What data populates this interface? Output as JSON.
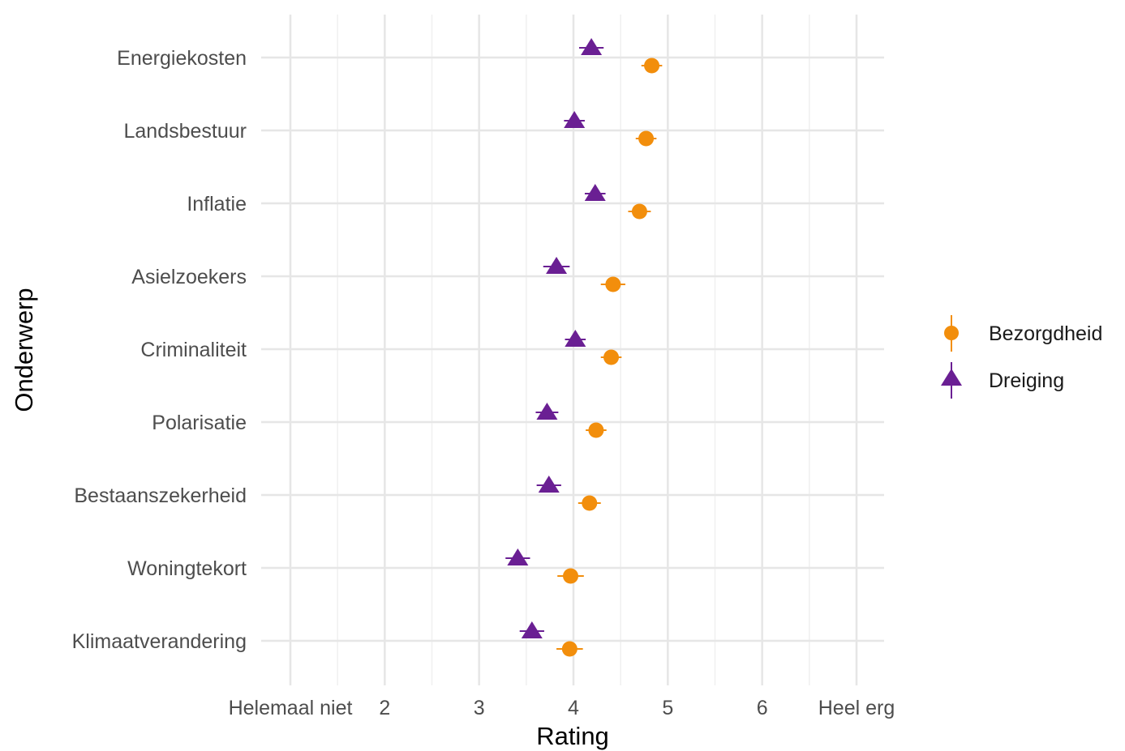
{
  "chart_data": {
    "type": "scatter",
    "title": "",
    "xlabel": "Rating",
    "ylabel": "Onderwerp",
    "xlim": [
      0.5,
      7.3
    ],
    "x_ticks": [
      {
        "value": 1,
        "label": "Helemaal niet"
      },
      {
        "value": 2,
        "label": "2"
      },
      {
        "value": 3,
        "label": "3"
      },
      {
        "value": 4,
        "label": "4"
      },
      {
        "value": 5,
        "label": "5"
      },
      {
        "value": 6,
        "label": "6"
      },
      {
        "value": 7,
        "label": "Heel erg"
      }
    ],
    "categories": [
      "Energiekosten",
      "Landsbestuur",
      "Inflatie",
      "Asielzoekers",
      "Criminaliteit",
      "Polarisatie",
      "Bestaanszekerheid",
      "Woningtekort",
      "Klimaatverandering"
    ],
    "series": [
      {
        "name": "Bezorgdheid",
        "marker": "circle",
        "color": "#f28e0c",
        "values": [
          4.83,
          4.77,
          4.7,
          4.42,
          4.4,
          4.24,
          4.17,
          3.97,
          3.96
        ],
        "errors": [
          0.11,
          0.11,
          0.12,
          0.13,
          0.11,
          0.11,
          0.12,
          0.14,
          0.14
        ]
      },
      {
        "name": "Dreiging",
        "marker": "triangle",
        "color": "#6a1f93",
        "values": [
          4.19,
          4.01,
          4.23,
          3.82,
          4.02,
          3.72,
          3.74,
          3.41,
          3.56
        ],
        "errors": [
          0.13,
          0.11,
          0.11,
          0.14,
          0.11,
          0.12,
          0.13,
          0.13,
          0.13
        ]
      }
    ],
    "grid": true,
    "legend_position": "right"
  }
}
